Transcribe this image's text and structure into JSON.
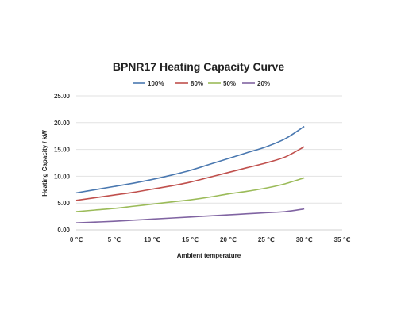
{
  "chart_data": {
    "type": "line",
    "title": "BPNR17 Heating Capacity Curve",
    "xlabel": "Ambient temperature",
    "ylabel": "Heating Capacity / kW",
    "x": [
      0,
      2.5,
      5,
      7.5,
      10,
      12.5,
      15,
      17.5,
      20,
      22.5,
      25,
      27.5,
      30
    ],
    "x_ticks": [
      "0 ℃",
      "5 ℃",
      "10 ℃",
      "15 ℃",
      "20 ℃",
      "25 ℃",
      "30 ℃",
      "35 ℃"
    ],
    "x_tick_values": [
      0,
      5,
      10,
      15,
      20,
      25,
      30,
      35
    ],
    "xlim": [
      0,
      35
    ],
    "y_ticks": [
      "0.00",
      "5.00",
      "10.00",
      "15.00",
      "20.00",
      "25.00"
    ],
    "y_tick_values": [
      0,
      5,
      10,
      15,
      20,
      25
    ],
    "ylim": [
      0,
      25
    ],
    "grid": "horizontal",
    "legend_position": "top",
    "series": [
      {
        "name": "100%",
        "color": "#4a78b0",
        "values": [
          6.9,
          7.5,
          8.1,
          8.7,
          9.4,
          10.2,
          11.1,
          12.2,
          13.3,
          14.4,
          15.5,
          17.0,
          19.3
        ]
      },
      {
        "name": "80%",
        "color": "#c0504d",
        "values": [
          5.5,
          6.0,
          6.5,
          7.0,
          7.6,
          8.2,
          8.9,
          9.8,
          10.7,
          11.6,
          12.5,
          13.6,
          15.5
        ]
      },
      {
        "name": "50%",
        "color": "#9bbb59",
        "values": [
          3.4,
          3.7,
          4.0,
          4.4,
          4.8,
          5.2,
          5.6,
          6.1,
          6.7,
          7.2,
          7.8,
          8.6,
          9.7
        ]
      },
      {
        "name": "20%",
        "color": "#8064a2",
        "values": [
          1.3,
          1.45,
          1.6,
          1.8,
          2.0,
          2.2,
          2.4,
          2.6,
          2.8,
          3.0,
          3.2,
          3.4,
          3.9
        ]
      }
    ]
  }
}
